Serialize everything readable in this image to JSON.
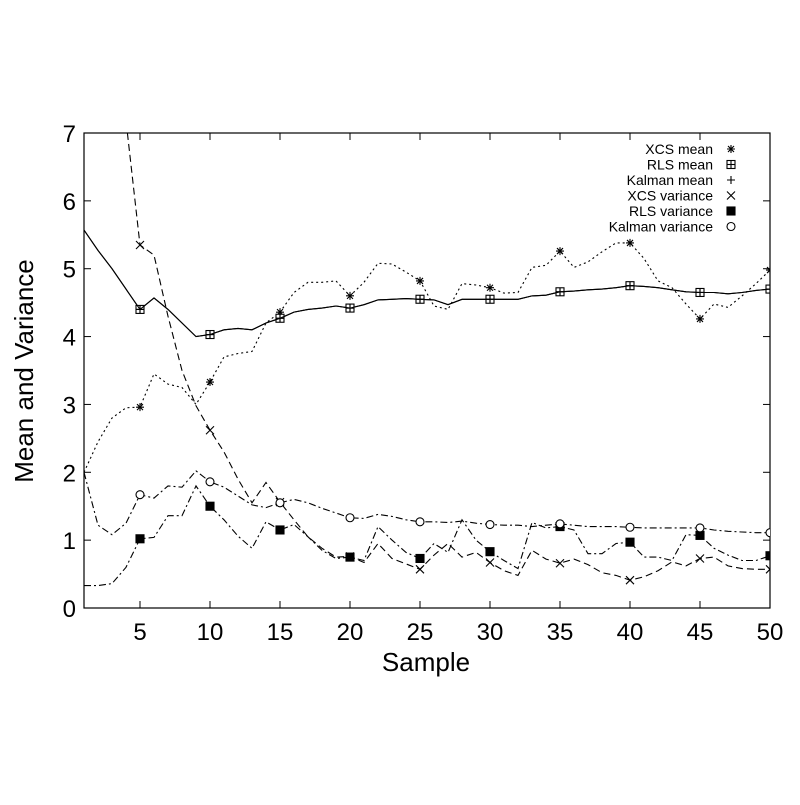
{
  "chart_data": {
    "type": "line",
    "xlabel": "Sample",
    "ylabel": "Mean and Variance",
    "xlim": [
      1,
      50
    ],
    "ylim": [
      0,
      7
    ],
    "xticks": [
      5,
      10,
      15,
      20,
      25,
      30,
      35,
      40,
      45,
      50
    ],
    "yticks": [
      0,
      1,
      2,
      3,
      4,
      5,
      6,
      7
    ],
    "grid": false,
    "legend_position": "top-right",
    "series": [
      {
        "name": "XCS mean",
        "line_style": "dotted",
        "marker": "asterisk",
        "marker_x": [
          5,
          10,
          15,
          20,
          25,
          30,
          35,
          40,
          45,
          50
        ],
        "x": [
          1,
          2,
          3,
          4,
          5,
          6,
          7,
          8,
          9,
          10,
          11,
          12,
          13,
          14,
          15,
          16,
          17,
          18,
          19,
          20,
          21,
          22,
          23,
          24,
          25,
          26,
          27,
          28,
          29,
          30,
          31,
          32,
          33,
          34,
          35,
          36,
          37,
          38,
          39,
          40,
          41,
          42,
          43,
          44,
          45,
          46,
          47,
          48,
          49,
          50
        ],
        "y": [
          2.0,
          2.45,
          2.8,
          2.95,
          2.96,
          3.45,
          3.3,
          3.25,
          3.0,
          3.33,
          3.7,
          3.75,
          3.78,
          4.2,
          4.36,
          4.65,
          4.8,
          4.8,
          4.82,
          4.6,
          4.8,
          5.08,
          5.07,
          4.95,
          4.82,
          4.45,
          4.4,
          4.78,
          4.76,
          4.72,
          4.64,
          4.65,
          5.02,
          5.05,
          5.26,
          5.02,
          5.1,
          5.25,
          5.38,
          5.38,
          5.15,
          4.82,
          4.72,
          4.48,
          4.26,
          4.48,
          4.43,
          4.6,
          4.78,
          4.98
        ]
      },
      {
        "name": "RLS mean",
        "line_style": "solid",
        "marker": "square",
        "marker_x": [
          5,
          10,
          15,
          20,
          25,
          30,
          35,
          40,
          45,
          50
        ],
        "x": [
          1,
          2,
          3,
          4,
          5,
          6,
          7,
          8,
          9,
          10,
          11,
          12,
          13,
          14,
          15,
          16,
          17,
          18,
          19,
          20,
          21,
          22,
          23,
          24,
          25,
          26,
          27,
          28,
          29,
          30,
          31,
          32,
          33,
          34,
          35,
          36,
          37,
          38,
          39,
          40,
          41,
          42,
          43,
          44,
          45,
          46,
          47,
          48,
          49,
          50
        ],
        "y": [
          5.57,
          5.27,
          5.0,
          4.7,
          4.4,
          4.57,
          4.4,
          4.2,
          4.0,
          4.03,
          4.1,
          4.12,
          4.1,
          4.2,
          4.27,
          4.36,
          4.4,
          4.42,
          4.45,
          4.42,
          4.47,
          4.54,
          4.55,
          4.56,
          4.55,
          4.54,
          4.47,
          4.55,
          4.55,
          4.55,
          4.55,
          4.55,
          4.6,
          4.61,
          4.66,
          4.67,
          4.69,
          4.7,
          4.72,
          4.75,
          4.74,
          4.72,
          4.69,
          4.66,
          4.65,
          4.65,
          4.63,
          4.65,
          4.68,
          4.7
        ]
      },
      {
        "name": "Kalman mean",
        "line_style": "solid",
        "marker": "plus",
        "marker_x": [
          5,
          10,
          15,
          20,
          25,
          30,
          35,
          40,
          45,
          50
        ],
        "x": [
          1,
          2,
          3,
          4,
          5,
          6,
          7,
          8,
          9,
          10,
          11,
          12,
          13,
          14,
          15,
          16,
          17,
          18,
          19,
          20,
          21,
          22,
          23,
          24,
          25,
          26,
          27,
          28,
          29,
          30,
          31,
          32,
          33,
          34,
          35,
          36,
          37,
          38,
          39,
          40,
          41,
          42,
          43,
          44,
          45,
          46,
          47,
          48,
          49,
          50
        ],
        "y": [
          5.57,
          5.27,
          5.0,
          4.7,
          4.4,
          4.57,
          4.4,
          4.2,
          4.0,
          4.03,
          4.1,
          4.12,
          4.1,
          4.2,
          4.27,
          4.36,
          4.4,
          4.42,
          4.45,
          4.42,
          4.47,
          4.54,
          4.55,
          4.56,
          4.55,
          4.54,
          4.47,
          4.55,
          4.55,
          4.55,
          4.55,
          4.55,
          4.6,
          4.61,
          4.66,
          4.67,
          4.69,
          4.7,
          4.72,
          4.75,
          4.74,
          4.72,
          4.69,
          4.66,
          4.65,
          4.65,
          4.63,
          4.65,
          4.68,
          4.7
        ]
      },
      {
        "name": "XCS variance",
        "line_style": "dashed",
        "marker": "cross",
        "marker_x": [
          5,
          10,
          15,
          20,
          25,
          30,
          35,
          40,
          45,
          50
        ],
        "x": [
          4.1,
          5,
          6,
          7,
          8,
          9,
          10,
          11,
          12,
          13,
          14,
          15,
          16,
          17,
          18,
          19,
          20,
          21,
          22,
          23,
          24,
          25,
          26,
          27,
          28,
          29,
          30,
          31,
          32,
          33,
          34,
          35,
          36,
          37,
          38,
          39,
          40,
          41,
          42,
          43,
          44,
          45,
          46,
          47,
          48,
          49,
          50
        ],
        "y": [
          7.0,
          5.35,
          5.2,
          4.3,
          3.5,
          2.98,
          2.62,
          2.3,
          1.9,
          1.55,
          1.85,
          1.56,
          1.3,
          1.05,
          0.88,
          0.75,
          0.76,
          0.67,
          0.95,
          0.73,
          0.65,
          0.57,
          0.78,
          0.95,
          0.75,
          0.82,
          0.67,
          0.55,
          0.48,
          0.85,
          0.72,
          0.66,
          0.72,
          0.64,
          0.52,
          0.48,
          0.41,
          0.46,
          0.55,
          0.68,
          0.62,
          0.73,
          0.75,
          0.62,
          0.58,
          0.57,
          0.57
        ]
      },
      {
        "name": "RLS variance",
        "line_style": "dash-dot",
        "marker": "filled-square",
        "marker_x": [
          5,
          10,
          15,
          20,
          25,
          30,
          35,
          40,
          45,
          50
        ],
        "x": [
          1,
          2,
          3,
          4,
          5,
          6,
          7,
          8,
          9,
          10,
          11,
          12,
          13,
          14,
          15,
          16,
          17,
          18,
          19,
          20,
          21,
          22,
          23,
          24,
          25,
          26,
          27,
          28,
          29,
          30,
          31,
          32,
          33,
          34,
          35,
          36,
          37,
          38,
          39,
          40,
          41,
          42,
          43,
          44,
          45,
          46,
          47,
          48,
          49,
          50
        ],
        "y": [
          0.33,
          0.33,
          0.36,
          0.6,
          1.02,
          1.04,
          1.36,
          1.36,
          1.8,
          1.5,
          1.3,
          1.06,
          0.88,
          1.27,
          1.15,
          1.23,
          1.05,
          0.85,
          0.73,
          0.75,
          0.7,
          1.2,
          1.0,
          0.82,
          0.73,
          0.95,
          0.82,
          1.3,
          1.0,
          0.83,
          0.7,
          0.58,
          1.26,
          1.18,
          1.2,
          1.15,
          0.8,
          0.8,
          0.95,
          0.97,
          0.75,
          0.75,
          0.7,
          1.08,
          1.07,
          0.88,
          0.78,
          0.7,
          0.7,
          0.77
        ]
      },
      {
        "name": "Kalman variance",
        "line_style": "dash-dot",
        "marker": "circle",
        "marker_x": [
          5,
          10,
          15,
          20,
          25,
          30,
          35,
          40,
          45,
          50
        ],
        "x": [
          1,
          2,
          3,
          4,
          5,
          6,
          7,
          8,
          9,
          10,
          11,
          12,
          13,
          14,
          15,
          16,
          17,
          18,
          19,
          20,
          21,
          22,
          23,
          24,
          25,
          26,
          27,
          28,
          29,
          30,
          31,
          32,
          33,
          34,
          35,
          36,
          37,
          38,
          39,
          40,
          41,
          42,
          43,
          44,
          45,
          46,
          47,
          48,
          49,
          50
        ],
        "y": [
          2.0,
          1.22,
          1.08,
          1.25,
          1.67,
          1.62,
          1.8,
          1.78,
          2.02,
          1.86,
          1.78,
          1.65,
          1.52,
          1.48,
          1.55,
          1.6,
          1.55,
          1.47,
          1.4,
          1.33,
          1.32,
          1.38,
          1.35,
          1.3,
          1.27,
          1.27,
          1.26,
          1.28,
          1.25,
          1.23,
          1.22,
          1.22,
          1.2,
          1.22,
          1.24,
          1.22,
          1.2,
          1.2,
          1.2,
          1.19,
          1.18,
          1.18,
          1.18,
          1.18,
          1.18,
          1.15,
          1.13,
          1.12,
          1.11,
          1.11
        ]
      }
    ]
  },
  "colors": {
    "line": "#000000",
    "background": "#ffffff"
  }
}
